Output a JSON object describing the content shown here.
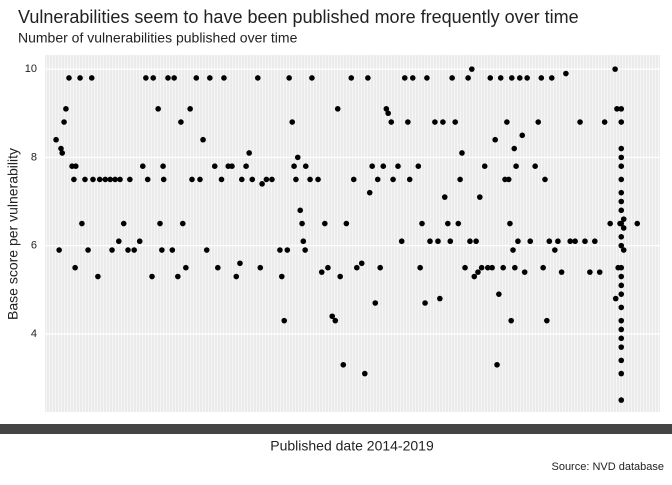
{
  "chart_data": {
    "type": "scatter",
    "title": "Vulnerabilities seem to have been published more frequently over time",
    "subtitle": "Number of vulnerabilities published over time",
    "x_label": "Published date 2014-2019",
    "y_label": "Base score per vulnerability",
    "caption": "Source: NVD database",
    "color": "#000000",
    "xlim": [
      0,
      100
    ],
    "ylim": [
      2.23,
      10.32
    ],
    "yticks": [
      4,
      6,
      8,
      10
    ],
    "grid": true,
    "x": [
      1.8,
      2.3,
      2.6,
      2.8,
      3.1,
      3.4,
      3.9,
      4.4,
      4.7,
      4.9,
      5.0,
      6.0,
      6.5,
      7.0,
      5.7,
      7.6,
      7.8,
      8.6,
      8.9,
      9.8,
      10.6,
      10.9,
      11.4,
      12.2,
      12.0,
      12.8,
      13.5,
      13.8,
      14.5,
      15.4,
      15.9,
      16.4,
      16.7,
      17.4,
      17.6,
      18.4,
      18.7,
      19.0,
      19.2,
      19.3,
      20,
      20.7,
      21,
      21.6,
      22.1,
      22.4,
      22.9,
      23.6,
      23.9,
      24.6,
      25.2,
      25.7,
      26.3,
      26.8,
      27.6,
      28.1,
      28.7,
      29.1,
      29.8,
      30.4,
      31.1,
      31.7,
      32.0,
      32.7,
      33.2,
      33.7,
      34.6,
      35,
      35.3,
      36,
      36.9,
      38.2,
      38.5,
      38.9,
      39.4,
      39.7,
      40.2,
      40.5,
      40.8,
      41.1,
      41.5,
      41.8,
      42,
      42.3,
      42.4,
      43.1,
      43.4,
      44.4,
      45.0,
      45.5,
      46.0,
      46.7,
      47.2,
      47.6,
      48,
      48.5,
      49,
      49.8,
      50.2,
      50.7,
      51.5,
      52.0,
      52.5,
      52.8,
      53.2,
      53.7,
      54.1,
      54.5,
      55,
      55.5,
      55.8,
      56.3,
      56.6,
      57.4,
      58,
      58.5,
      59,
      59.3,
      59.8,
      60.7,
      61,
      61.3,
      61.8,
      62.1,
      62.6,
      63.4,
      63.9,
      64.2,
      64.7,
      65,
      65.5,
      65.9,
      66.2,
      66.7,
      67.2,
      67.5,
      67.8,
      68.3,
      68.8,
      69.1,
      69.4,
      69.8,
      70.1,
      70.4,
      70.7,
      71,
      71.5,
      72,
      72.4,
      72.7,
      73.2,
      73.5,
      73.8,
      74.1,
      74.5,
      74.8,
      75.1,
      75.4,
      75.6,
      75.8,
      75.9,
      76.1,
      76.3,
      76.4,
      76.6,
      76.9,
      77.2,
      77.6,
      78,
      78.4,
      78.9,
      79.7,
      80.2,
      80.7,
      81,
      81.3,
      81.6,
      82,
      82.4,
      82.9,
      83.4,
      84,
      84.7,
      85.4,
      86.2,
      87,
      87.8,
      88.6,
      89.4,
      90.2,
      91,
      91.9,
      92.7,
      92.8,
      93,
      93.2,
      93.5,
      93.7,
      93.7,
      93.7,
      93.7,
      93.7,
      93.7,
      93.7,
      93.7,
      93.7,
      93.7,
      93.7,
      93.7,
      93.7,
      93.7,
      93.7,
      93.7,
      93.7,
      93.7,
      93.7,
      93.7,
      93.7,
      93.7,
      93.7,
      93.7,
      94.1,
      94.1,
      94.1,
      96.3
    ],
    "values": [
      8.4,
      5.9,
      8.2,
      8.1,
      8.8,
      9.1,
      9.8,
      7.8,
      7.5,
      5.5,
      7.8,
      6.5,
      7.5,
      5.9,
      9.8,
      9.8,
      7.5,
      5.3,
      7.5,
      7.5,
      7.5,
      5.9,
      7.5,
      7.5,
      6.1,
      6.5,
      5.9,
      7.5,
      5.9,
      6.1,
      7.8,
      9.8,
      7.5,
      5.3,
      9.8,
      9.1,
      6.5,
      5.9,
      7.8,
      7.5,
      9.8,
      5.9,
      9.8,
      5.3,
      8.8,
      6.5,
      5.5,
      9.1,
      7.5,
      9.8,
      7.5,
      8.4,
      5.9,
      9.8,
      7.8,
      5.5,
      7.5,
      9.8,
      7.8,
      7.8,
      5.3,
      5.6,
      7.5,
      7.8,
      8.1,
      7.5,
      9.8,
      5.5,
      7.4,
      7.5,
      7.5,
      5.9,
      5.3,
      4.3,
      5.9,
      9.8,
      8.8,
      7.8,
      7.5,
      8.0,
      6.8,
      6.5,
      6.1,
      5.9,
      7.8,
      7.5,
      9.8,
      7.5,
      5.4,
      6.5,
      5.5,
      4.4,
      4.3,
      9.1,
      5.3,
      3.3,
      6.5,
      9.8,
      7.5,
      5.5,
      5.6,
      3.1,
      9.8,
      7.2,
      7.8,
      4.7,
      7.5,
      5.5,
      7.8,
      9.1,
      9.0,
      8.8,
      7.5,
      7.8,
      6.1,
      9.8,
      8.8,
      7.5,
      9.8,
      7.8,
      5.5,
      6.5,
      4.7,
      9.8,
      6.1,
      8.8,
      6.1,
      4.8,
      8.8,
      7.1,
      6.5,
      6.1,
      9.8,
      8.8,
      6.5,
      7.5,
      8.1,
      5.5,
      9.8,
      6.1,
      10,
      5.3,
      6.1,
      5.4,
      7.1,
      5.5,
      7.8,
      5.5,
      9.8,
      5.5,
      8.4,
      3.3,
      4.9,
      9.8,
      5.5,
      7.5,
      8.8,
      7.5,
      6.5,
      4.3,
      9.8,
      5.9,
      8.2,
      5.5,
      7.8,
      6.1,
      9.8,
      8.5,
      5.4,
      9.8,
      6.1,
      7.8,
      8.8,
      9.8,
      5.5,
      7.5,
      4.3,
      6.1,
      9.8,
      5.9,
      6.1,
      5.4,
      9.9,
      6.1,
      6.1,
      8.8,
      6.1,
      5.4,
      6.1,
      5.4,
      8.8,
      6.5,
      10,
      4.8,
      9.1,
      5.5,
      6.5,
      9.1,
      8.8,
      8.2,
      8.0,
      7.8,
      7.5,
      7.2,
      7.0,
      6.8,
      6.5,
      6.2,
      6.0,
      5.5,
      5.3,
      5.1,
      4.9,
      4.6,
      4.3,
      4.1,
      3.9,
      3.7,
      3.4,
      3.1,
      2.5,
      6.6,
      6.4,
      5.9,
      6.5
    ]
  }
}
